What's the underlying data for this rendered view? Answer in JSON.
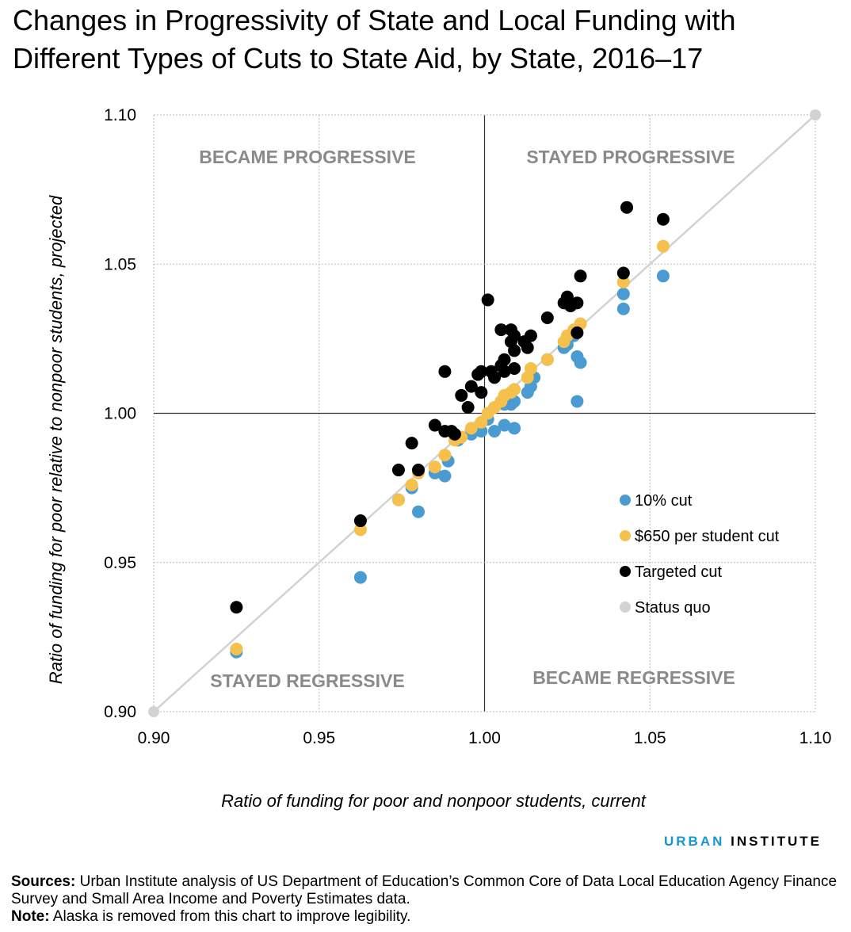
{
  "title": "Changes in Progressivity of State and Local Funding with Different Types of Cuts to State Aid, by State, 2016–17",
  "brand": {
    "part1": "URBAN",
    "part2": "INSTITUTE"
  },
  "sources_label": "Sources:",
  "sources_text": "Urban Institute analysis of US Department of Education’s Common Core of Data Local Education Agency Finance Survey and Small Area Income and Poverty Estimates data.",
  "note_label": "Note:",
  "note_text": "Alaska is removed from this chart to improve legibility.",
  "chart_data": {
    "type": "scatter",
    "xlabel": "Ratio of funding for poor and nonpoor students, current",
    "ylabel": "Ratio of funding for poor relative to nonpoor students, projected",
    "xlim": [
      0.9,
      1.1
    ],
    "ylim": [
      0.9,
      1.1
    ],
    "xticks": [
      "0.90",
      "0.95",
      "1.00",
      "1.05",
      "1.10"
    ],
    "yticks": [
      "0.90",
      "0.95",
      "1.00",
      "1.05",
      "1.10"
    ],
    "grid": true,
    "legend_position": "right",
    "quadrant_labels": {
      "top_left": "BECAME PROGRESSIVE",
      "top_right": "STAYED PROGRESSIVE",
      "bottom_left": "STAYED REGRESSIVE",
      "bottom_right": "BECAME REGRESSIVE"
    },
    "series": [
      {
        "name": "Status quo",
        "color": "#d2d2d2",
        "line": true,
        "points": [
          [
            0.9,
            0.9
          ],
          [
            1.1,
            1.1
          ]
        ]
      },
      {
        "name": "10% cut",
        "color": "#4a9bd1",
        "points": [
          [
            0.925,
            0.92
          ],
          [
            0.9625,
            0.945
          ],
          [
            0.974,
            0.971
          ],
          [
            0.978,
            0.975
          ],
          [
            0.98,
            0.967
          ],
          [
            0.985,
            0.98
          ],
          [
            0.988,
            0.979
          ],
          [
            0.989,
            0.984
          ],
          [
            0.992,
            0.991
          ],
          [
            0.996,
            0.993
          ],
          [
            0.999,
            0.994
          ],
          [
            1.001,
            0.998
          ],
          [
            1.003,
            0.994
          ],
          [
            1.006,
            0.996
          ],
          [
            1.009,
            0.995
          ],
          [
            1.006,
            1.003
          ],
          [
            1.008,
            1.003
          ],
          [
            1.009,
            1.004
          ],
          [
            1.013,
            1.007
          ],
          [
            1.014,
            1.009
          ],
          [
            1.015,
            1.012
          ],
          [
            1.019,
            1.018
          ],
          [
            1.024,
            1.022
          ],
          [
            1.025,
            1.023
          ],
          [
            1.027,
            1.026
          ],
          [
            1.028,
            1.019
          ],
          [
            1.029,
            1.017
          ],
          [
            1.028,
            1.004
          ],
          [
            1.042,
            1.04
          ],
          [
            1.042,
            1.035
          ],
          [
            1.054,
            1.046
          ]
        ]
      },
      {
        "name": "$650 per student cut",
        "color": "#f5c14c",
        "points": [
          [
            0.925,
            0.921
          ],
          [
            0.9625,
            0.961
          ],
          [
            0.974,
            0.971
          ],
          [
            0.978,
            0.976
          ],
          [
            0.98,
            0.98
          ],
          [
            0.985,
            0.982
          ],
          [
            0.988,
            0.986
          ],
          [
            0.991,
            0.991
          ],
          [
            0.993,
            0.992
          ],
          [
            0.996,
            0.995
          ],
          [
            0.999,
            0.997
          ],
          [
            1.001,
            1.0
          ],
          [
            1.003,
            1.002
          ],
          [
            1.005,
            1.004
          ],
          [
            1.006,
            1.006
          ],
          [
            1.008,
            1.007
          ],
          [
            1.009,
            1.008
          ],
          [
            1.013,
            1.012
          ],
          [
            1.014,
            1.015
          ],
          [
            1.019,
            1.018
          ],
          [
            1.024,
            1.024
          ],
          [
            1.025,
            1.026
          ],
          [
            1.027,
            1.028
          ],
          [
            1.029,
            1.03
          ],
          [
            1.042,
            1.044
          ],
          [
            1.054,
            1.056
          ]
        ]
      },
      {
        "name": "Targeted cut",
        "color": "#000000",
        "points": [
          [
            0.925,
            0.935
          ],
          [
            0.9625,
            0.964
          ],
          [
            0.974,
            0.981
          ],
          [
            0.978,
            0.99
          ],
          [
            0.98,
            0.981
          ],
          [
            0.985,
            0.996
          ],
          [
            0.988,
            0.994
          ],
          [
            0.988,
            1.014
          ],
          [
            0.99,
            0.994
          ],
          [
            0.991,
            0.993
          ],
          [
            0.993,
            1.006
          ],
          [
            0.995,
            1.002
          ],
          [
            0.996,
            1.009
          ],
          [
            0.999,
            1.007
          ],
          [
            0.998,
            1.013
          ],
          [
            0.999,
            1.014
          ],
          [
            1.001,
            1.038
          ],
          [
            1.002,
            1.014
          ],
          [
            1.003,
            1.012
          ],
          [
            1.005,
            1.028
          ],
          [
            1.005,
            1.016
          ],
          [
            1.006,
            1.014
          ],
          [
            1.006,
            1.018
          ],
          [
            1.008,
            1.028
          ],
          [
            1.008,
            1.024
          ],
          [
            1.009,
            1.026
          ],
          [
            1.009,
            1.021
          ],
          [
            1.009,
            1.015
          ],
          [
            1.012,
            1.024
          ],
          [
            1.013,
            1.022
          ],
          [
            1.014,
            1.026
          ],
          [
            1.019,
            1.032
          ],
          [
            1.024,
            1.037
          ],
          [
            1.025,
            1.039
          ],
          [
            1.026,
            1.036
          ],
          [
            1.028,
            1.037
          ],
          [
            1.028,
            1.027
          ],
          [
            1.029,
            1.046
          ],
          [
            1.042,
            1.047
          ],
          [
            1.043,
            1.069
          ],
          [
            1.054,
            1.065
          ]
        ]
      }
    ]
  }
}
